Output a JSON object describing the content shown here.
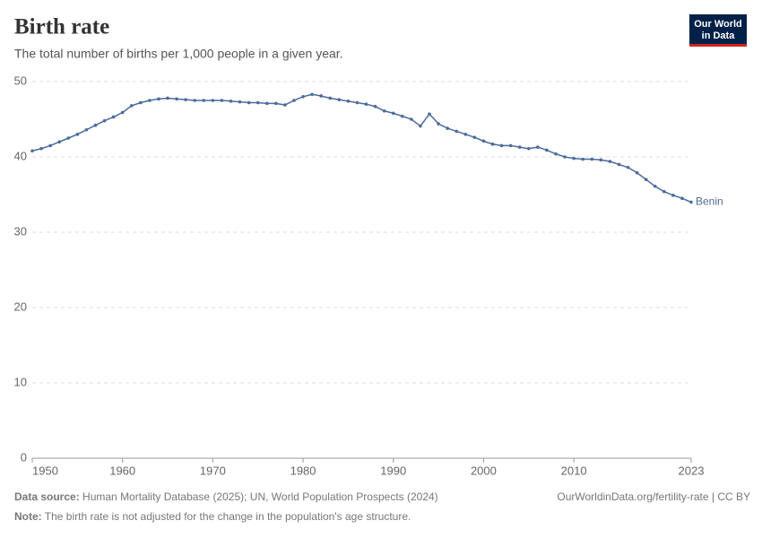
{
  "chart_data": {
    "type": "line",
    "title": "Birth rate",
    "subtitle": "The total number of births per 1,000 people in a given year.",
    "logo": [
      "Our World",
      "in Data"
    ],
    "x": [
      1950,
      1951,
      1952,
      1953,
      1954,
      1955,
      1956,
      1957,
      1958,
      1959,
      1960,
      1961,
      1962,
      1963,
      1964,
      1965,
      1966,
      1967,
      1968,
      1969,
      1970,
      1971,
      1972,
      1973,
      1974,
      1975,
      1976,
      1977,
      1978,
      1979,
      1980,
      1981,
      1982,
      1983,
      1984,
      1985,
      1986,
      1987,
      1988,
      1989,
      1990,
      1991,
      1992,
      1993,
      1994,
      1995,
      1996,
      1997,
      1998,
      1999,
      2000,
      2001,
      2002,
      2003,
      2004,
      2005,
      2006,
      2007,
      2008,
      2009,
      2010,
      2011,
      2012,
      2013,
      2014,
      2015,
      2016,
      2017,
      2018,
      2019,
      2020,
      2021,
      2022,
      2023
    ],
    "series": [
      {
        "name": "Benin",
        "color": "#4c6a9c",
        "values": [
          40.8,
          41.1,
          41.5,
          42.0,
          42.5,
          43.0,
          43.6,
          44.2,
          44.8,
          45.3,
          45.9,
          46.8,
          47.2,
          47.5,
          47.7,
          47.8,
          47.7,
          47.6,
          47.5,
          47.5,
          47.5,
          47.5,
          47.4,
          47.3,
          47.2,
          47.2,
          47.1,
          47.1,
          46.9,
          47.5,
          48.0,
          48.3,
          48.1,
          47.8,
          47.6,
          47.4,
          47.2,
          47.0,
          46.7,
          46.1,
          45.8,
          45.4,
          45.0,
          44.1,
          45.7,
          44.4,
          43.8,
          43.4,
          43.0,
          42.6,
          42.1,
          41.7,
          41.5,
          41.5,
          41.3,
          41.1,
          41.3,
          40.9,
          40.4,
          40.0,
          39.8,
          39.7,
          39.7,
          39.6,
          39.4,
          39.0,
          38.6,
          37.9,
          37.0,
          36.1,
          35.4,
          34.9,
          34.5,
          34.0
        ]
      }
    ],
    "xlim": [
      1950,
      2023
    ],
    "xticks": [
      1950,
      1960,
      1970,
      1980,
      1990,
      2000,
      2010,
      2023
    ],
    "ylim": [
      0,
      50
    ],
    "yticks": [
      0,
      10,
      20,
      30,
      40,
      50
    ],
    "grid": true,
    "source_label": "Data source:",
    "source": "Human Mortality Database (2025); UN, World Population Prospects (2024)",
    "url": "OurWorldinData.org/fertility-rate | CC BY",
    "note_label": "Note:",
    "note": "The birth rate is not adjusted for the change in the population's age structure."
  }
}
